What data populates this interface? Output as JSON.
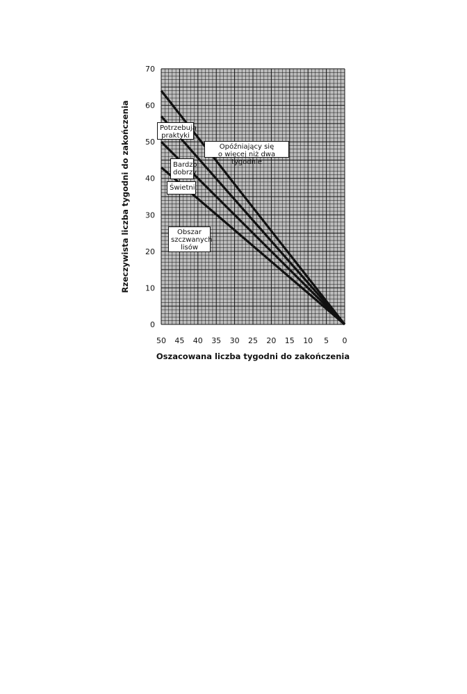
{
  "chart_data": {
    "type": "line",
    "xlabel": "Oszacowana liczba tygodni do zakończenia",
    "ylabel": "Rzeczywista liczba tygodni do zakończenia",
    "xlim": [
      50,
      0
    ],
    "ylim": [
      0,
      70
    ],
    "x_reversed": true,
    "grid": true,
    "xticks": [
      "50",
      "45",
      "40",
      "35",
      "30",
      "25",
      "20",
      "15",
      "10",
      "5",
      "0"
    ],
    "yticks": [
      "0",
      "10",
      "20",
      "30",
      "40",
      "50",
      "60",
      "70"
    ],
    "series": [
      {
        "x": [
          50,
          0
        ],
        "y": [
          64,
          0
        ]
      },
      {
        "x": [
          50,
          0
        ],
        "y": [
          57,
          0
        ]
      },
      {
        "x": [
          50,
          0
        ],
        "y": [
          50,
          0
        ]
      },
      {
        "x": [
          50,
          0
        ],
        "y": [
          43,
          0
        ]
      }
    ],
    "annotations": [
      {
        "lines": [
          "Potrzebują",
          "praktyki"
        ]
      },
      {
        "lines": [
          "Opóźniający się",
          "o więcej niż dwa tygodnie"
        ]
      },
      {
        "lines": [
          "Bardzo",
          "dobrzy"
        ]
      },
      {
        "lines": [
          "Świetni"
        ]
      },
      {
        "lines": [
          "Obszar",
          "szczwanych",
          "lisów"
        ]
      }
    ],
    "colors": {
      "line": "#111111",
      "background": "#bdbdbd",
      "grid": "#111111"
    }
  }
}
